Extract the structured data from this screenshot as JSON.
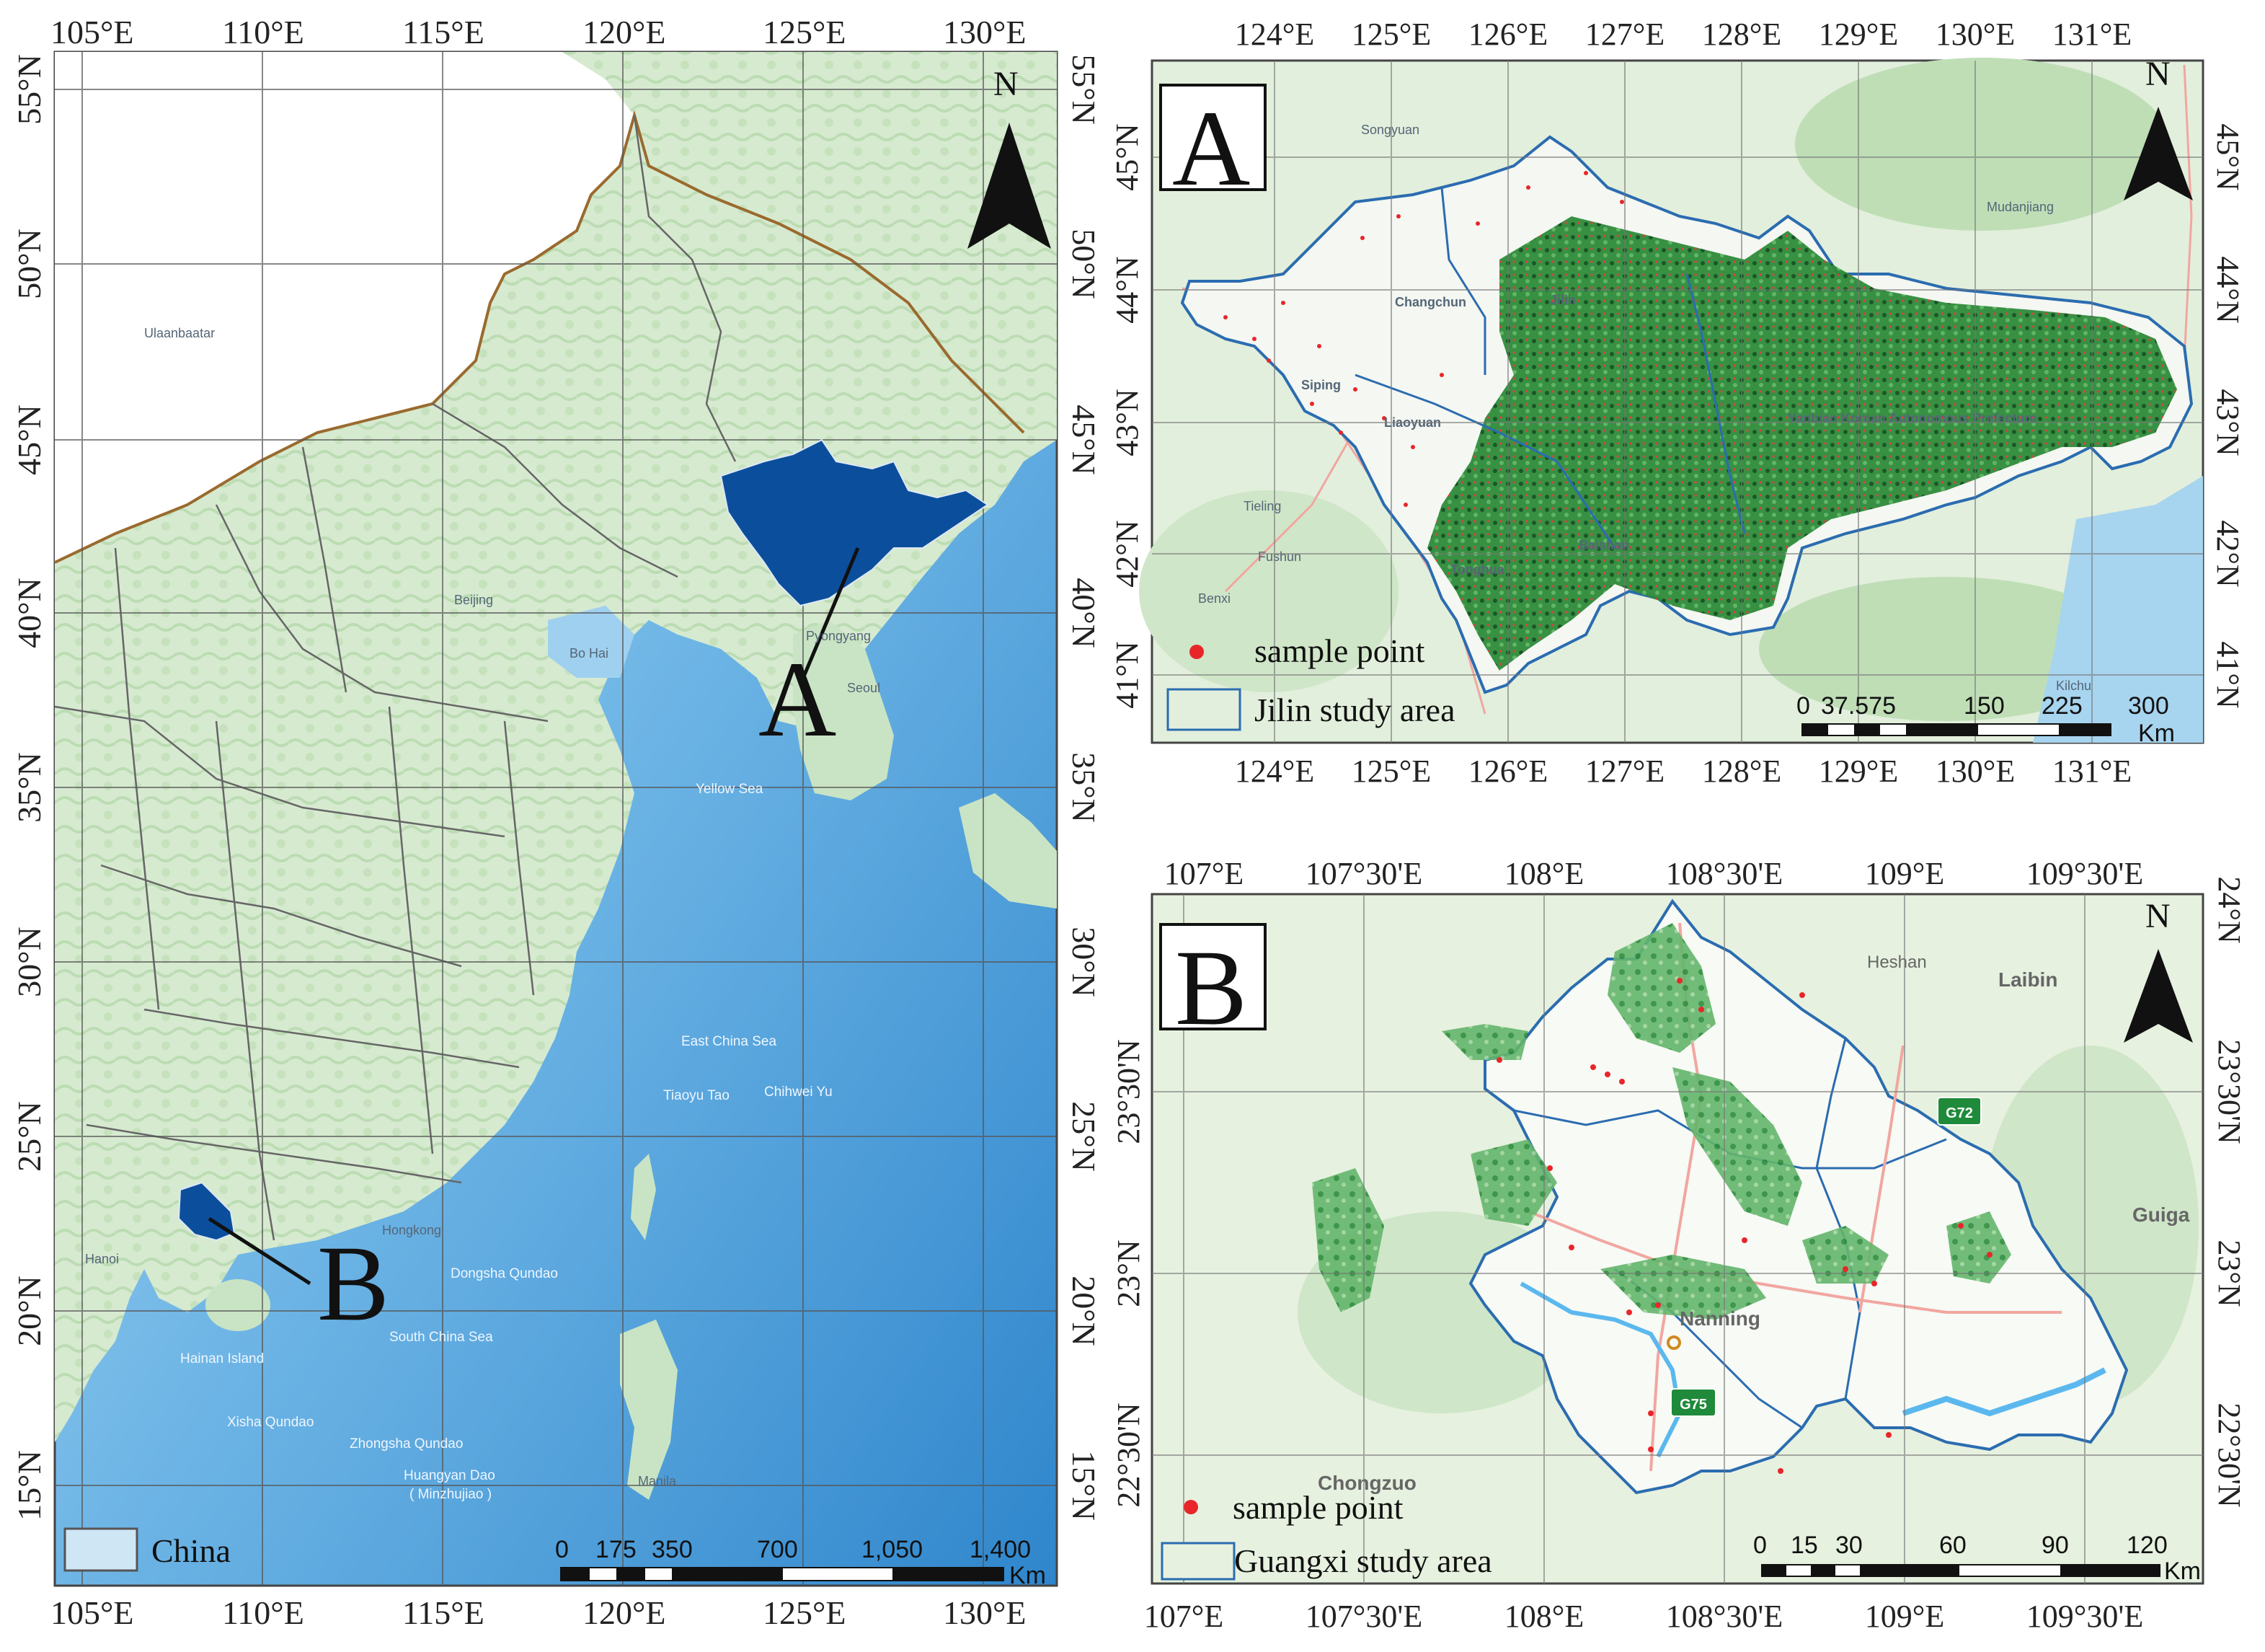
{
  "left_map": {
    "lon_top": [
      "105°E",
      "110°E",
      "115°E",
      "120°E",
      "125°E",
      "130°E"
    ],
    "lon_bottom": [
      "105°E",
      "110°E",
      "115°E",
      "120°E",
      "125°E",
      "130°E"
    ],
    "lat_left": [
      "55°N",
      "50°N",
      "45°N",
      "40°N",
      "35°N",
      "30°N",
      "25°N",
      "20°N",
      "15°N"
    ],
    "lat_right": [
      "55°N",
      "50°N",
      "45°N",
      "40°N",
      "35°N",
      "30°N",
      "25°N",
      "20°N",
      "15°N"
    ],
    "north": "N",
    "callout_a": "A",
    "callout_b": "B",
    "legend_label": "China",
    "scale_labels": [
      "0",
      "175",
      "350",
      "700",
      "1,050",
      "1,400"
    ],
    "scale_unit": "Km",
    "places": [
      "Ulaanbaatar",
      "Beijing",
      "Bo Hai",
      "Pyongyang",
      "Seoul",
      "Yellow Sea",
      "East China Sea",
      "Tiaoyu Tao",
      "Chihwei Yu",
      "Hongkong",
      "Dongsha Qundao",
      "South China Sea",
      "Hanoi",
      "Hainan Island",
      "Xisha Qundao",
      "Zhongsha Qundao",
      "Huangyan Dao",
      "( Minzhujiao )",
      "Manila"
    ]
  },
  "map_a": {
    "label": "A",
    "lon_top": [
      "124°E",
      "125°E",
      "126°E",
      "127°E",
      "128°E",
      "129°E",
      "130°E",
      "131°E"
    ],
    "lon_bottom": [
      "124°E",
      "125°E",
      "126°E",
      "127°E",
      "128°E",
      "129°E",
      "130°E",
      "131°E"
    ],
    "lat_left": [
      "45°N",
      "44°N",
      "43°N",
      "42°N",
      "41°N"
    ],
    "lat_right": [
      "45°N",
      "44°N",
      "43°N",
      "42°N",
      "41°N"
    ],
    "north": "N",
    "legend_point": "sample point",
    "legend_area": "Jilin study area",
    "scale_labels": [
      "0",
      "37.575",
      "150",
      "225",
      "300"
    ],
    "scale_unit": "Km",
    "places": [
      "Songyuan",
      "Changchun",
      "Jilin",
      "Siping",
      "Liaoyuan",
      "Tieling",
      "Fushun",
      "Benxi",
      "Tonghua",
      "Baishan",
      "Yanbian Korean Autonomous Prefecture",
      "Mudanjiang",
      "Kilchu"
    ]
  },
  "map_b": {
    "label": "B",
    "lon_top": [
      "107°E",
      "107°30'E",
      "108°E",
      "108°30'E",
      "109°E",
      "109°30'E"
    ],
    "lon_bottom": [
      "107°E",
      "107°30'E",
      "108°E",
      "108°30'E",
      "109°E",
      "109°30'E"
    ],
    "lat_left": [
      "23°30'N",
      "23°N",
      "22°30'N"
    ],
    "lat_right": [
      "24°N",
      "23°30'N",
      "23°N",
      "22°30'N"
    ],
    "north": "N",
    "legend_point": "sample point",
    "legend_area": "Guangxi study area",
    "scale_labels": [
      "0",
      "15",
      "30",
      "60",
      "90",
      "120"
    ],
    "scale_unit": "Km",
    "places": [
      "Heshan",
      "Laibin",
      "Guiga",
      "Nanning",
      "Chongzuo",
      "G72",
      "G75"
    ]
  },
  "colors": {
    "land": "#d8ead2",
    "land_green": "#a9d3a0",
    "sea_light": "#cfe6f5",
    "sea_mid": "#7fbfe6",
    "sea_deep": "#3c8fd0",
    "study_area": "#0b4f9c",
    "boundary_brown": "#9a6a2e",
    "vegetation": "#1f7a2a",
    "sample_point": "#e8262a",
    "study_outline": "#2b6cb0"
  }
}
